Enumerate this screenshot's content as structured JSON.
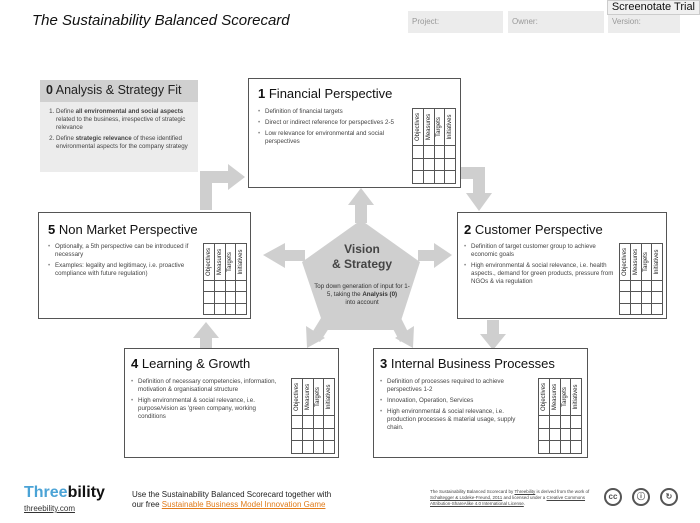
{
  "header": {
    "title": "The Sustainability Balanced Scorecard",
    "project_label": "Project:",
    "owner_label": "Owner:",
    "version_label": "Version:",
    "trial_badge": "Screenotate Trial"
  },
  "analysis": {
    "num": "0",
    "title": "Analysis & Strategy Fit",
    "items": [
      {
        "pre": "Define ",
        "bold": "all environmental and social aspects",
        "post": " related to the business, irrespective of strategic relevance"
      },
      {
        "pre": "Define ",
        "bold": "strategic relevance",
        "post": " of these identified environmental aspects for the company strategy"
      }
    ]
  },
  "grid_headers": [
    "Objectives",
    "Measures",
    "Targets",
    "Initiatives"
  ],
  "perspectives": {
    "financial": {
      "num": "1",
      "title": "Financial Perspective",
      "bullets": [
        "Definition of financial targets",
        "Direct or indirect reference for perspectives 2-5",
        "Low relevance for environmental and social perspectives"
      ]
    },
    "customer": {
      "num": "2",
      "title": "Customer Perspective",
      "bullets": [
        "Definition of target customer group to achieve economic goals",
        "High environmental & social relevance, i.e. health aspects., demand for green products, pressure from NGOs & via regulation"
      ]
    },
    "internal": {
      "num": "3",
      "title": "Internal Business Processes",
      "bullets": [
        "Definition of processes required to achieve perspectives 1-2",
        "Innovation, Operation, Services",
        "High environmental & social relevance, i.e. production processes & material usage, supply chain."
      ]
    },
    "learning": {
      "num": "4",
      "title": "Learning & Growth",
      "bullets": [
        "Definition of necessary competencies, information, motivation & organisational structure",
        "High environmental & social relevance, i.e. purpose/vision as 'green company, working conditions"
      ]
    },
    "nonmarket": {
      "num": "5",
      "title": "Non Market Perspective",
      "bullets": [
        "Optionally, a 5th perspective can be introduced if necessary",
        "Examples: legality and legitimacy, i.e. proactive compliance  with future regulation)"
      ]
    }
  },
  "vision": {
    "line1": "Vision",
    "line2": "& Strategy",
    "sub_pre": "Top down generation of input for 1-5, taking the ",
    "sub_bold": "Analysis (0)",
    "sub_post": " into account"
  },
  "footer": {
    "logo_part1": "Three",
    "logo_part2": "bility",
    "url": "threebility.com",
    "text_line1": "Use the Sustainability Balanced Scorecard together with",
    "text_line2_pre": "our free ",
    "text_link": "Sustainable Business Model Innovation Game",
    "license_pre": "The Sustainability Balanced Scorecard by ",
    "license_link1": "Threebility",
    "license_mid": " is derived from the work of ",
    "license_link2": "Schaltegger & Lüdeke-Freund, 2011",
    "license_mid2": " and licensed under a ",
    "license_link3": "Creative Commons Attribution-ShareAlike 4.0 International License",
    "license_end": "."
  },
  "colors": {
    "arrow": "#cfcfcf",
    "pentagon": "#cfcfcf",
    "logo_accent": "#4ba3d6",
    "link": "#e07b1a"
  }
}
